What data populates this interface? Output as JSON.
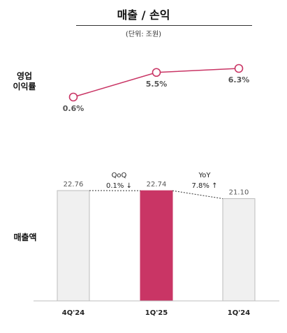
{
  "header": {
    "title": "매출 / 손익",
    "unit": "(단위: 조원)"
  },
  "rows": {
    "op_margin_label": [
      "영업",
      "이익률"
    ],
    "revenue_label": "매출액"
  },
  "colors": {
    "accent": "#c93565",
    "bar_gray": "#f0f0f0",
    "bar_border": "#bdbdbd"
  },
  "chart_data": [
    {
      "type": "line",
      "categories": [
        "4Q'24",
        "1Q'25",
        "1Q'24"
      ],
      "series": [
        {
          "values": [
            0.6,
            5.5,
            6.3
          ],
          "labels": [
            "0.6%",
            "5.5%",
            "6.3%"
          ]
        }
      ]
    },
    {
      "type": "bar",
      "categories": [
        "4Q'24",
        "1Q'25",
        "1Q'24"
      ],
      "tick_labels": [
        "4Q'24",
        "1Q'25",
        "1Q'24"
      ],
      "values": [
        22.76,
        22.74,
        21.1
      ],
      "value_labels": [
        "22.76",
        "22.74",
        "21.10"
      ],
      "highlight_index": 1,
      "annotations": [
        {
          "title": "QoQ",
          "value": "0.1% ↓"
        },
        {
          "title": "YoY",
          "value": "7.8% ↑"
        }
      ]
    }
  ]
}
